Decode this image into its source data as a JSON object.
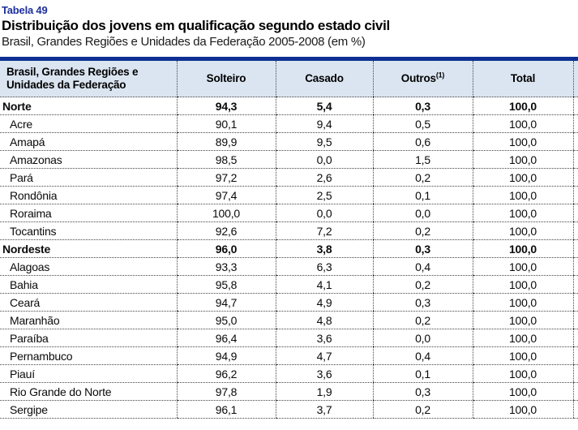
{
  "caption": {
    "label": "Tabela 49",
    "title": "Distribuição dos jovens em qualificação segundo estado civil",
    "subtitle": "Brasil, Grandes Regiões e Unidades da Federação 2005-2008 (em %)"
  },
  "colors": {
    "accent_rule": "#0d2f92",
    "header_bg": "#dbe5f1",
    "label_blue": "#1e2f9e",
    "grid_dotted": "#444444"
  },
  "chart_data": {
    "type": "table",
    "title": "Distribuição dos jovens em qualificação segundo estado civil",
    "subtitle": "Brasil, Grandes Regiões e Unidades da Federação 2005-2008 (em %)",
    "columns": [
      "Brasil, Grandes Regiões e Unidades da Federação",
      "Solteiro",
      "Casado",
      "Outros(1)",
      "Total"
    ],
    "rows": [
      {
        "name": "Norte",
        "bold": true,
        "values": [
          "94,3",
          "5,4",
          "0,3",
          "100,0"
        ]
      },
      {
        "name": "Acre",
        "bold": false,
        "values": [
          "90,1",
          "9,4",
          "0,5",
          "100,0"
        ]
      },
      {
        "name": "Amapá",
        "bold": false,
        "values": [
          "89,9",
          "9,5",
          "0,6",
          "100,0"
        ]
      },
      {
        "name": "Amazonas",
        "bold": false,
        "values": [
          "98,5",
          "0,0",
          "1,5",
          "100,0"
        ]
      },
      {
        "name": "Pará",
        "bold": false,
        "values": [
          "97,2",
          "2,6",
          "0,2",
          "100,0"
        ]
      },
      {
        "name": "Rondônia",
        "bold": false,
        "values": [
          "97,4",
          "2,5",
          "0,1",
          "100,0"
        ]
      },
      {
        "name": "Roraima",
        "bold": false,
        "values": [
          "100,0",
          "0,0",
          "0,0",
          "100,0"
        ]
      },
      {
        "name": "Tocantins",
        "bold": false,
        "values": [
          "92,6",
          "7,2",
          "0,2",
          "100,0"
        ]
      },
      {
        "name": "Nordeste",
        "bold": true,
        "values": [
          "96,0",
          "3,8",
          "0,3",
          "100,0"
        ]
      },
      {
        "name": "Alagoas",
        "bold": false,
        "values": [
          "93,3",
          "6,3",
          "0,4",
          "100,0"
        ]
      },
      {
        "name": "Bahia",
        "bold": false,
        "values": [
          "95,8",
          "4,1",
          "0,2",
          "100,0"
        ]
      },
      {
        "name": "Ceará",
        "bold": false,
        "values": [
          "94,7",
          "4,9",
          "0,3",
          "100,0"
        ]
      },
      {
        "name": "Maranhão",
        "bold": false,
        "values": [
          "95,0",
          "4,8",
          "0,2",
          "100,0"
        ]
      },
      {
        "name": "Paraíba",
        "bold": false,
        "values": [
          "96,4",
          "3,6",
          "0,0",
          "100,0"
        ]
      },
      {
        "name": "Pernambuco",
        "bold": false,
        "values": [
          "94,9",
          "4,7",
          "0,4",
          "100,0"
        ]
      },
      {
        "name": "Piauí",
        "bold": false,
        "values": [
          "96,2",
          "3,6",
          "0,1",
          "100,0"
        ]
      },
      {
        "name": "Rio Grande do Norte",
        "bold": false,
        "values": [
          "97,8",
          "1,9",
          "0,3",
          "100,0"
        ]
      },
      {
        "name": "Sergipe",
        "bold": false,
        "values": [
          "96,1",
          "3,7",
          "0,2",
          "100,0"
        ]
      }
    ]
  },
  "header": {
    "name_col": "Brasil, Grandes Regiões e Unidades da Federação",
    "solteiro": "Solteiro",
    "casado": "Casado",
    "outros": "Outros",
    "outros_sup": "(1)",
    "total": "Total"
  }
}
